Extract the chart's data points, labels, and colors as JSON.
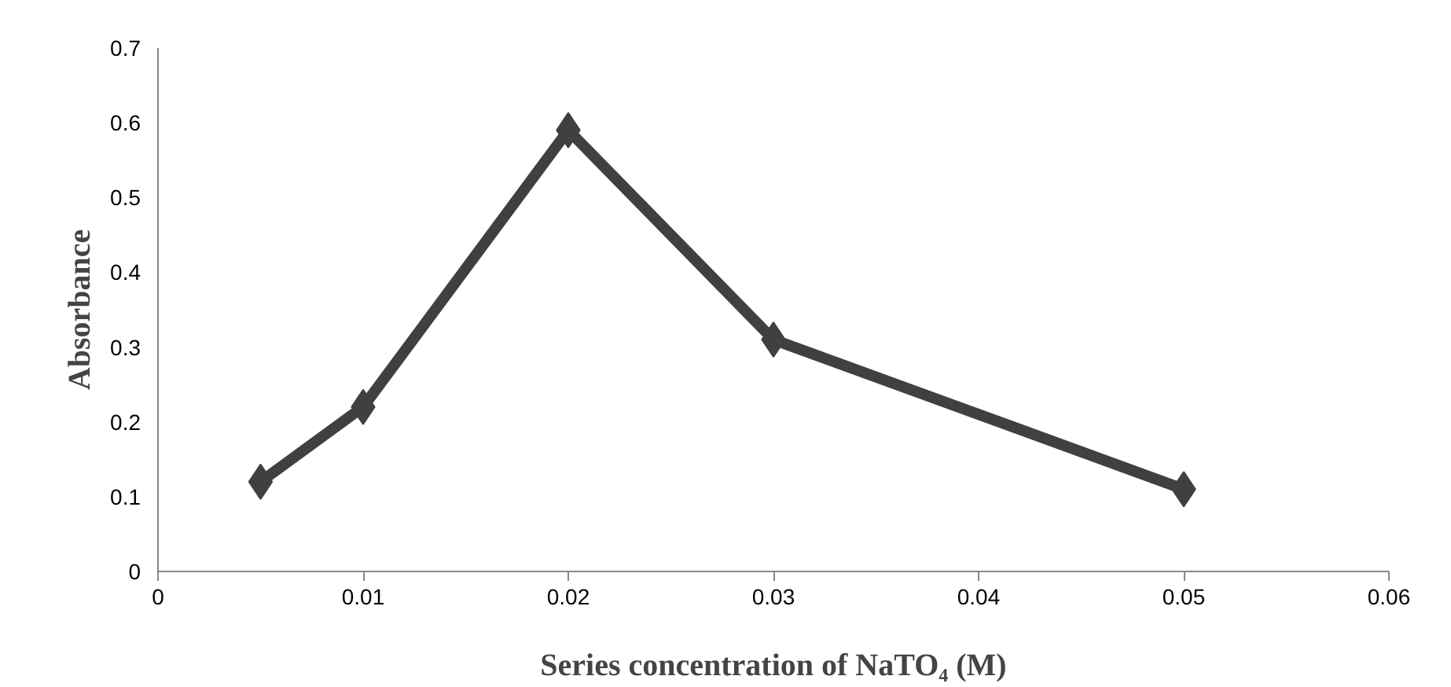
{
  "chart_data": {
    "type": "line",
    "xlabel": "Series concentration of NaTO₄ (M)",
    "ylabel": "Absorbance",
    "x": [
      0.005,
      0.01,
      0.02,
      0.03,
      0.05
    ],
    "series": [
      {
        "color": "#404040",
        "values": [
          0.12,
          0.22,
          0.59,
          0.31,
          0.11
        ]
      }
    ],
    "xlim": [
      0,
      0.06
    ],
    "xticks": [
      0,
      0.01,
      0.02,
      0.03,
      0.04,
      0.05,
      0.06
    ],
    "ylim": [
      0,
      0.7
    ],
    "yticks": [
      0,
      0.1,
      0.2,
      0.3,
      0.4,
      0.5,
      0.6,
      0.7
    ],
    "grid": false,
    "marker": "diamond",
    "line_style": "solid"
  }
}
